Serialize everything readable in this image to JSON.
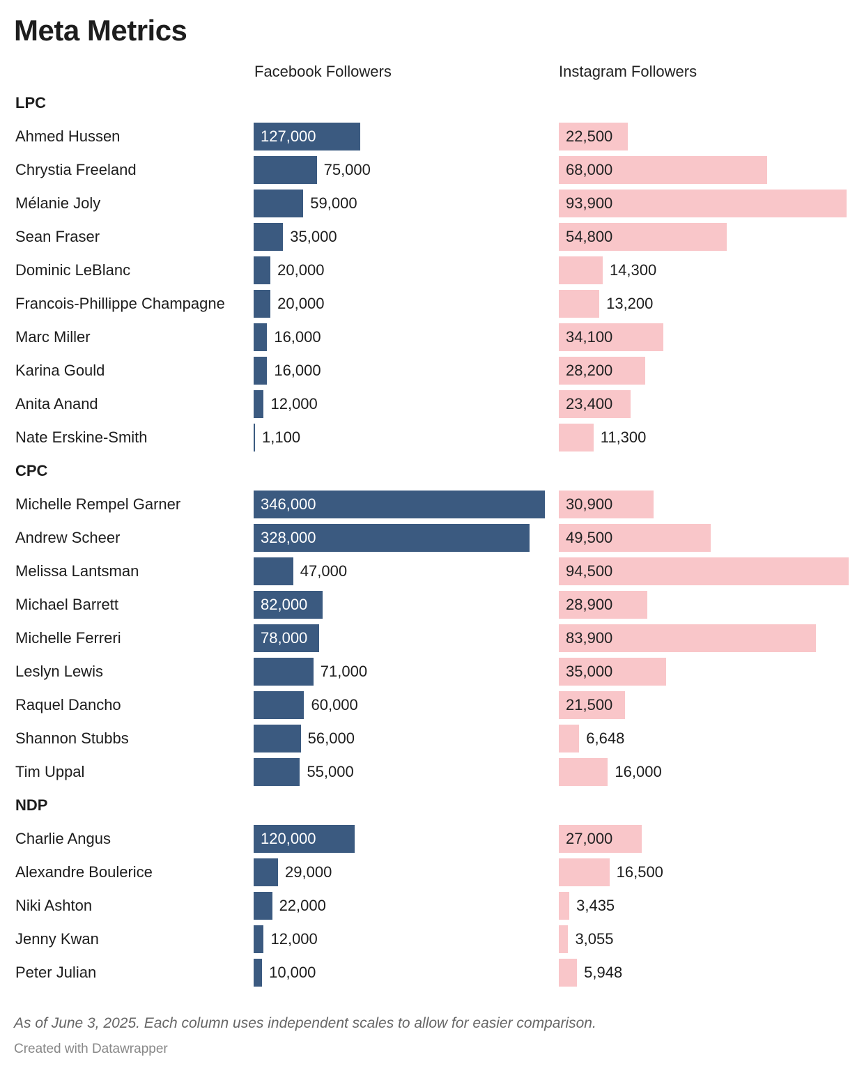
{
  "chart_data": {
    "type": "bar",
    "title": "Meta Metrics",
    "columns": [
      "Facebook Followers",
      "Instagram Followers"
    ],
    "colors": {
      "facebook": "#3b5a80",
      "instagram": "#f9c6c9"
    },
    "notes": "As of June 3, 2025. Each column uses independent scales to allow for easier comparison.",
    "credit": "Created with Datawrapper",
    "groups": [
      {
        "name": "LPC",
        "rows": [
          {
            "name": "Ahmed Hussen",
            "facebook": 127000,
            "instagram": 22500
          },
          {
            "name": "Chrystia Freeland",
            "facebook": 75000,
            "instagram": 68000
          },
          {
            "name": "Mélanie Joly",
            "facebook": 59000,
            "instagram": 93900
          },
          {
            "name": "Sean Fraser",
            "facebook": 35000,
            "instagram": 54800
          },
          {
            "name": "Dominic LeBlanc",
            "facebook": 20000,
            "instagram": 14300
          },
          {
            "name": "Francois-Phillippe Champagne",
            "facebook": 20000,
            "instagram": 13200
          },
          {
            "name": "Marc Miller",
            "facebook": 16000,
            "instagram": 34100
          },
          {
            "name": "Karina Gould",
            "facebook": 16000,
            "instagram": 28200
          },
          {
            "name": "Anita Anand",
            "facebook": 12000,
            "instagram": 23400
          },
          {
            "name": "Nate Erskine-Smith",
            "facebook": 1100,
            "instagram": 11300
          }
        ]
      },
      {
        "name": "CPC",
        "rows": [
          {
            "name": "Michelle Rempel Garner",
            "facebook": 346000,
            "instagram": 30900
          },
          {
            "name": "Andrew Scheer",
            "facebook": 328000,
            "instagram": 49500
          },
          {
            "name": "Melissa Lantsman",
            "facebook": 47000,
            "instagram": 94500
          },
          {
            "name": "Michael Barrett",
            "facebook": 82000,
            "instagram": 28900
          },
          {
            "name": "Michelle Ferreri",
            "facebook": 78000,
            "instagram": 83900
          },
          {
            "name": "Leslyn Lewis",
            "facebook": 71000,
            "instagram": 35000
          },
          {
            "name": "Raquel Dancho",
            "facebook": 60000,
            "instagram": 21500
          },
          {
            "name": "Shannon Stubbs",
            "facebook": 56000,
            "instagram": 6648
          },
          {
            "name": "Tim Uppal",
            "facebook": 55000,
            "instagram": 16000
          }
        ]
      },
      {
        "name": "NDP",
        "rows": [
          {
            "name": "Charlie Angus",
            "facebook": 120000,
            "instagram": 27000
          },
          {
            "name": "Alexandre Boulerice",
            "facebook": 29000,
            "instagram": 16500
          },
          {
            "name": "Niki Ashton",
            "facebook": 22000,
            "instagram": 3435
          },
          {
            "name": "Jenny Kwan",
            "facebook": 12000,
            "instagram": 3055
          },
          {
            "name": "Peter Julian",
            "facebook": 10000,
            "instagram": 5948
          }
        ]
      }
    ]
  }
}
